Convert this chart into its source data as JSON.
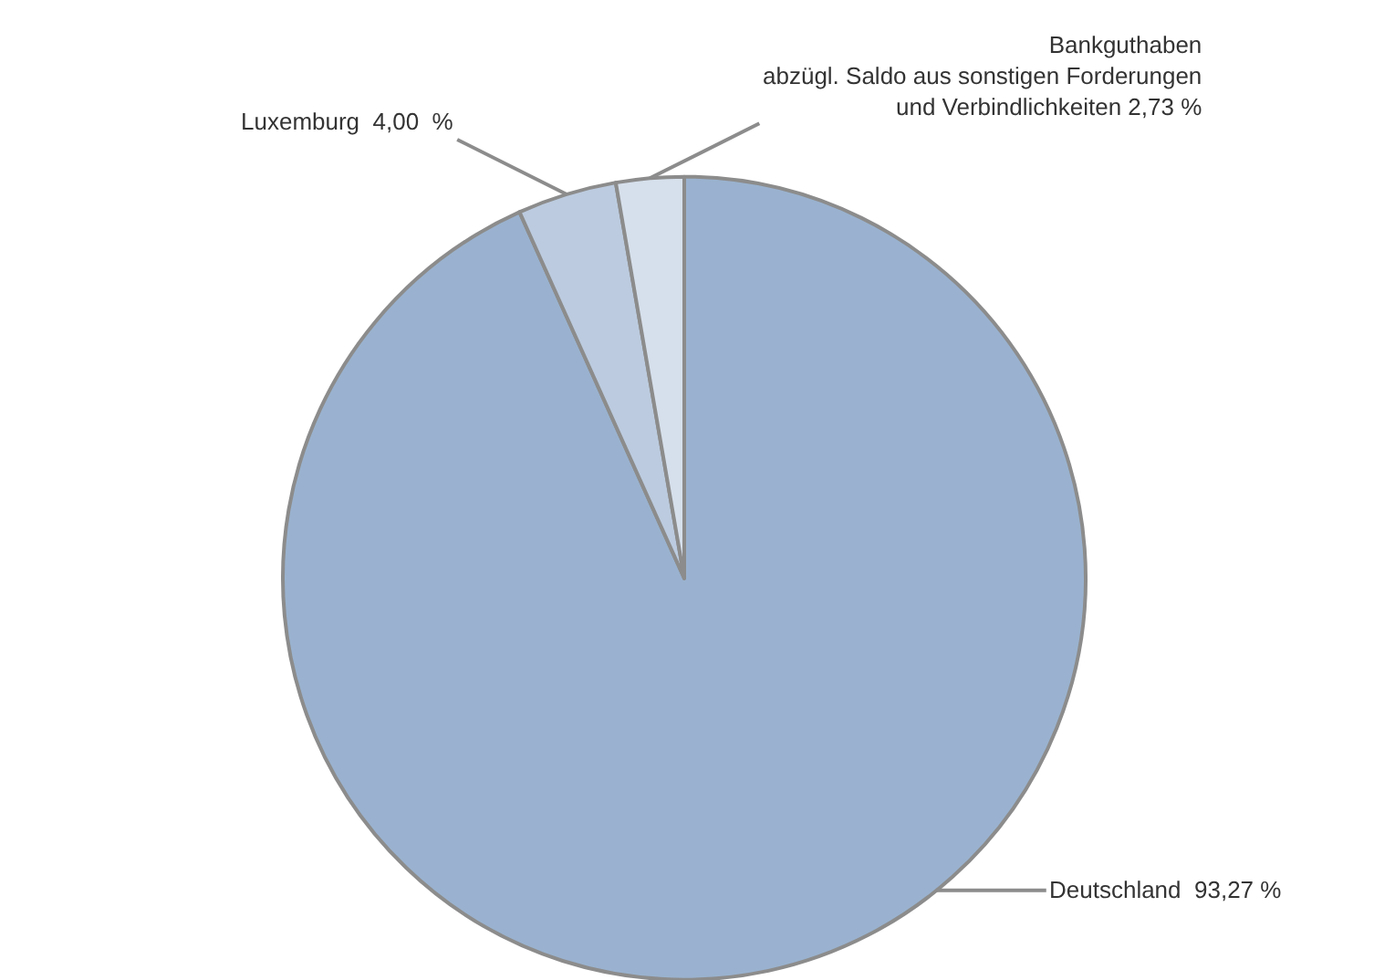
{
  "chart_data": {
    "type": "pie",
    "categories": [
      "Deutschland",
      "Luxemburg",
      "Bankguthaben\nabzügl. Saldo aus sonstigen Forderungen\nund Verbindlichkeiten"
    ],
    "values": [
      93.27,
      4.0,
      2.73
    ],
    "value_labels": [
      "93,27 %",
      "4,00  %",
      "2,73 %"
    ],
    "colors": [
      "#9ab2cf",
      "#bccbdf",
      "#d6e0ec"
    ],
    "legend": false
  }
}
